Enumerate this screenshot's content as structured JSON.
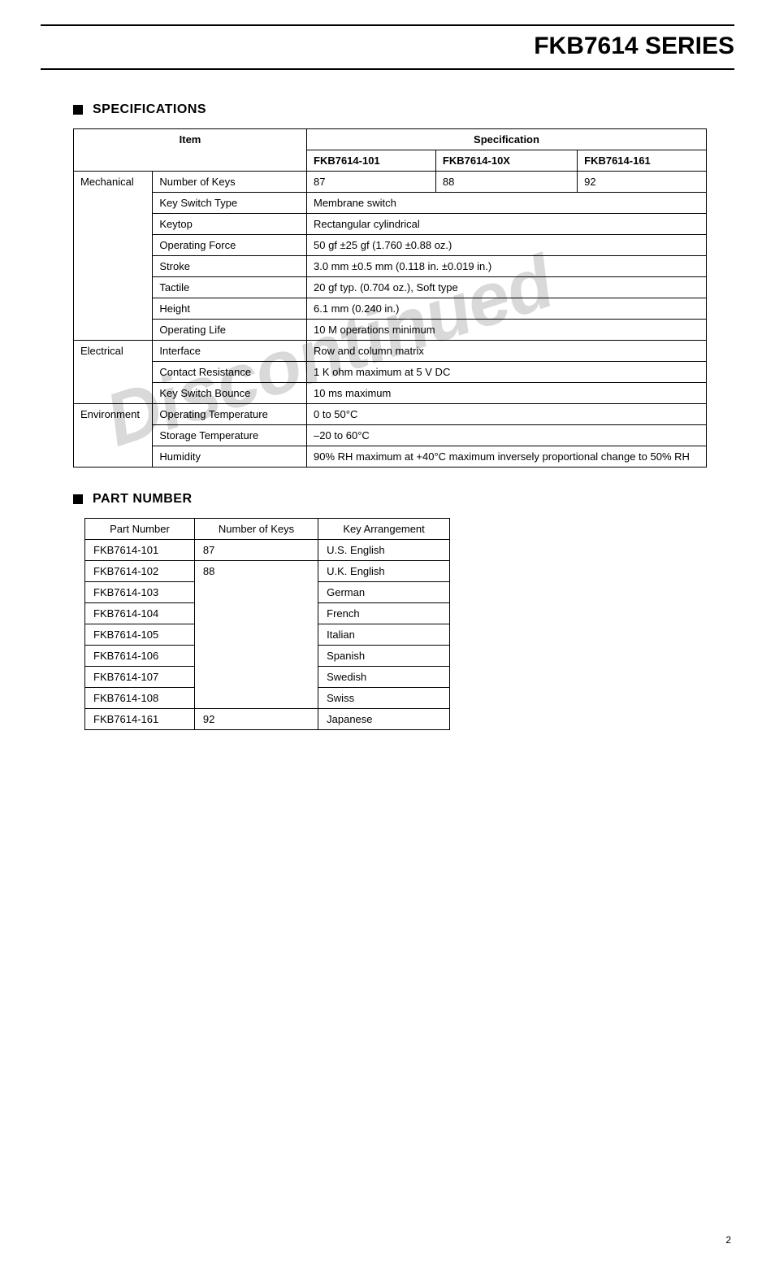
{
  "header": {
    "title": "FKB7614 SERIES"
  },
  "watermark": "Discontinued",
  "sections": {
    "specifications": {
      "title": "SPECIFICATIONS",
      "item_header": "Item",
      "spec_header": "Specification",
      "models": [
        "FKB7614-101",
        "FKB7614-10X",
        "FKB7614-161"
      ],
      "groups": [
        {
          "category": "Mechanical",
          "rows": [
            {
              "label": "Number of Keys",
              "spans": false,
              "values": [
                "87",
                "88",
                "92"
              ]
            },
            {
              "label": "Key Switch Type",
              "spans": true,
              "value": "Membrane switch"
            },
            {
              "label": "Keytop",
              "spans": true,
              "value": "Rectangular cylindrical"
            },
            {
              "label": "Operating Force",
              "spans": true,
              "value": "50 gf ±25 gf (1.760 ±0.88 oz.)"
            },
            {
              "label": "Stroke",
              "spans": true,
              "value": "3.0 mm ±0.5 mm (0.118 in. ±0.019 in.)"
            },
            {
              "label": "Tactile",
              "spans": true,
              "value": "20 gf typ. (0.704 oz.), Soft type"
            },
            {
              "label": "Height",
              "spans": true,
              "value": "6.1 mm (0.240 in.)"
            },
            {
              "label": "Operating Life",
              "spans": true,
              "value": "10 M operations minimum"
            }
          ]
        },
        {
          "category": "Electrical",
          "rows": [
            {
              "label": "Interface",
              "spans": true,
              "value": "Row and column matrix"
            },
            {
              "label": "Contact Resistance",
              "spans": true,
              "value": "1 K ohm maximum at 5 V DC"
            },
            {
              "label": "Key Switch Bounce",
              "spans": true,
              "value": "10 ms maximum"
            }
          ]
        },
        {
          "category": "Environment",
          "rows": [
            {
              "label": "Operating Temperature",
              "spans": true,
              "value": " 0 to 50°C"
            },
            {
              "label": "Storage Temperature",
              "spans": true,
              "value": "–20 to 60°C"
            },
            {
              "label": "Humidity",
              "spans": true,
              "value": "90% RH maximum at +40°C maximum inversely proportional change to 50% RH"
            }
          ]
        }
      ]
    },
    "part_number": {
      "title": "PART NUMBER",
      "headers": [
        "Part Number",
        "Number of Keys",
        "Key Arrangement"
      ],
      "rows": [
        {
          "pn": "FKB7614-101",
          "keys": "87",
          "keys_rowspan": 1,
          "arr": "U.S. English"
        },
        {
          "pn": "FKB7614-102",
          "keys": "88",
          "keys_rowspan": 7,
          "arr": "U.K. English"
        },
        {
          "pn": "FKB7614-103",
          "keys": null,
          "arr": "German"
        },
        {
          "pn": "FKB7614-104",
          "keys": null,
          "arr": "French"
        },
        {
          "pn": "FKB7614-105",
          "keys": null,
          "arr": "Italian"
        },
        {
          "pn": "FKB7614-106",
          "keys": null,
          "arr": "Spanish"
        },
        {
          "pn": "FKB7614-107",
          "keys": null,
          "arr": "Swedish"
        },
        {
          "pn": "FKB7614-108",
          "keys": null,
          "arr": "Swiss"
        },
        {
          "pn": "FKB7614-161",
          "keys": "92",
          "keys_rowspan": 1,
          "arr": "Japanese"
        }
      ]
    }
  },
  "page_number": "2"
}
